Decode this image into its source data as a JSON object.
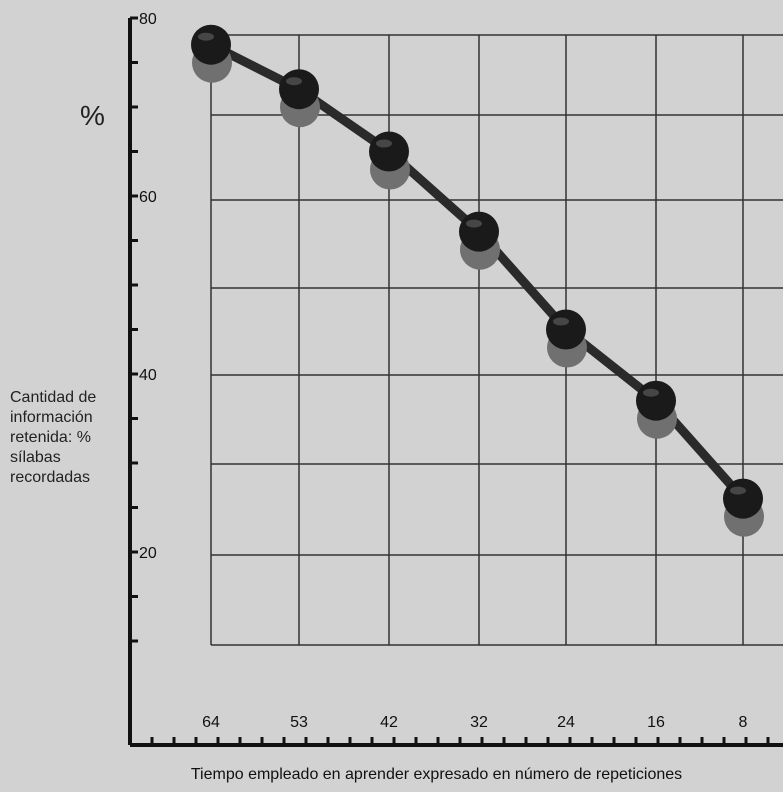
{
  "chart_data": {
    "type": "line",
    "title": "",
    "percent_symbol": "%",
    "ylabel": "Cantidad de información retenida: % sílabas recordadas",
    "xlabel": "Tiempo empleado en aprender expresado en número de repeticiones",
    "categories": [
      "64",
      "53",
      "42",
      "32",
      "24",
      "16",
      "8"
    ],
    "values": [
      77,
      72,
      65,
      56,
      45,
      37,
      26
    ],
    "y_ticks": [
      "80",
      "60",
      "40",
      "20"
    ],
    "ylim": [
      10,
      80
    ],
    "grid": true,
    "colors": {
      "line": "#2a2a2a",
      "marker": "#1a1a1a",
      "shadow": "#707070",
      "axis": "#111111"
    }
  }
}
